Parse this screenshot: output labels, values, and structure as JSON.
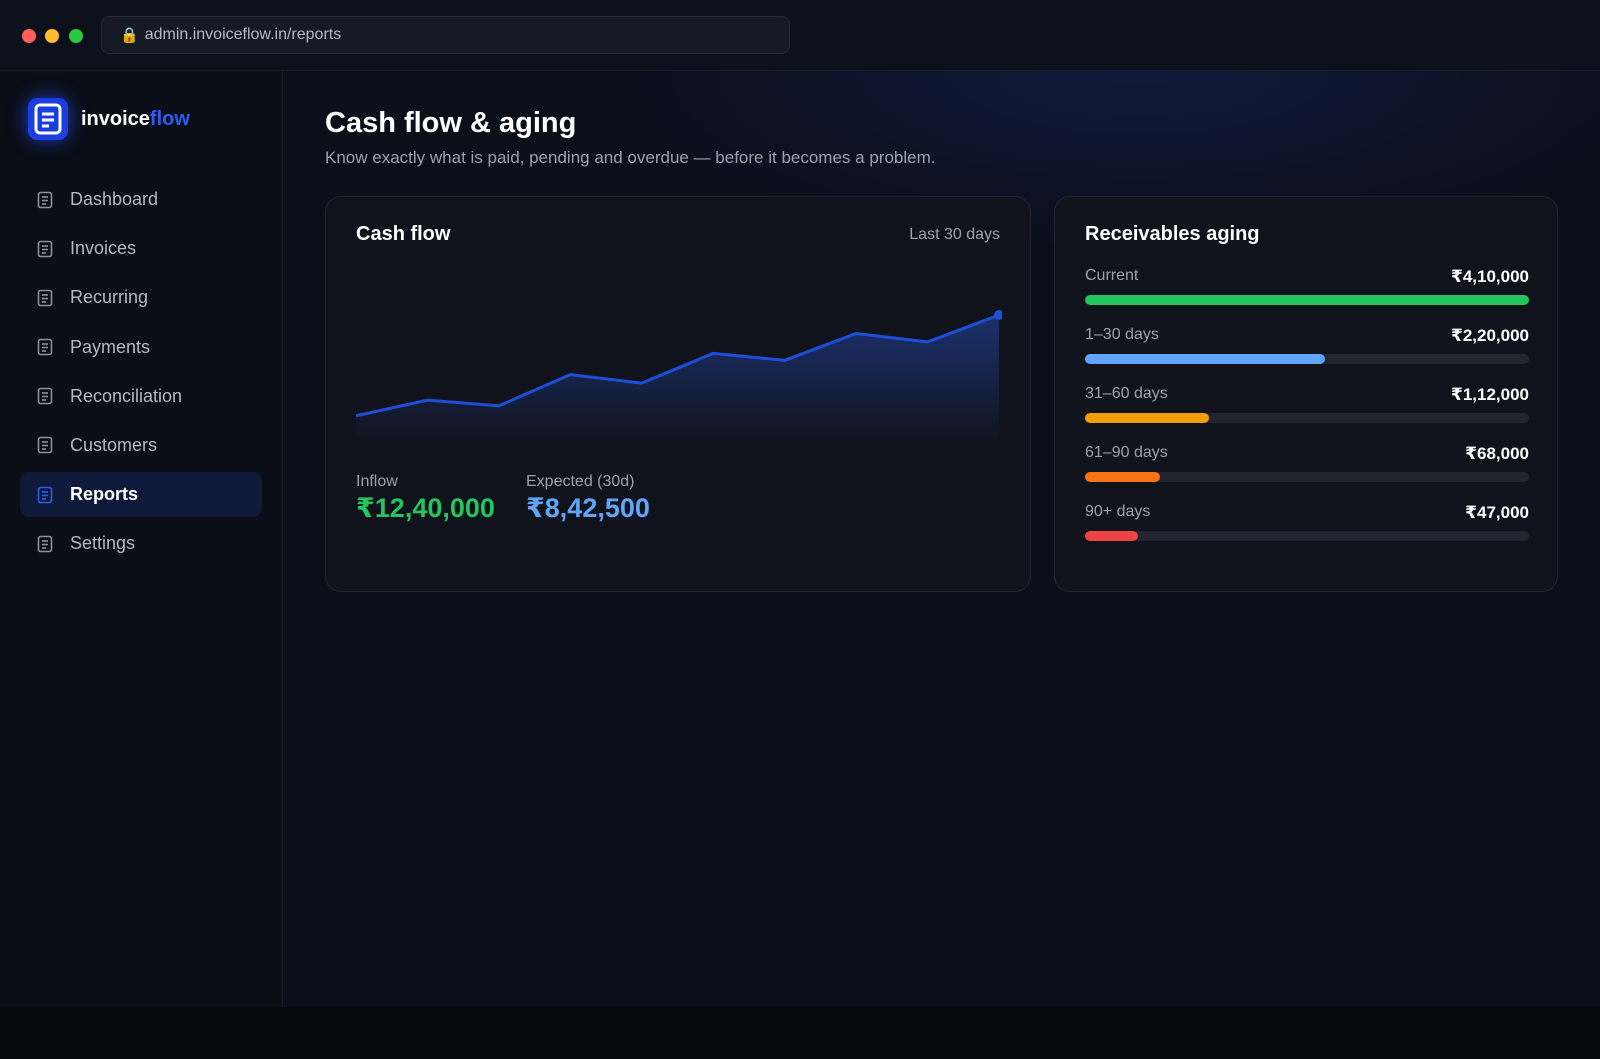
{
  "browser": {
    "url": "admin.invoiceflow.in/reports"
  },
  "brand": {
    "name_main": "invoice",
    "name_accent": "flow",
    "accent_color": "#2f5bf0"
  },
  "sidebar": {
    "items": [
      {
        "label": "Dashboard",
        "active": false
      },
      {
        "label": "Invoices",
        "active": false
      },
      {
        "label": "Recurring",
        "active": false
      },
      {
        "label": "Payments",
        "active": false
      },
      {
        "label": "Reconciliation",
        "active": false
      },
      {
        "label": "Customers",
        "active": false
      },
      {
        "label": "Reports",
        "active": true
      },
      {
        "label": "Settings",
        "active": false
      }
    ],
    "icon": "document-icon"
  },
  "page": {
    "title": "Cash flow & aging",
    "subtitle": "Know exactly what is paid, pending and overdue — before it becomes a problem."
  },
  "cashflow": {
    "title": "Cash flow",
    "range": "Last 30 days",
    "inflow_label": "Inflow",
    "inflow_value": "₹12,40,000",
    "expected_label": "Expected (30d)",
    "expected_value": "₹8,42,500"
  },
  "chart_data": {
    "type": "area",
    "title": "Cash flow",
    "x": [
      1,
      2,
      3,
      4,
      5,
      6,
      7,
      8,
      9,
      10
    ],
    "values": [
      10,
      21,
      17,
      39,
      33,
      54,
      49,
      68,
      62,
      81
    ],
    "ylim": [
      0,
      100
    ],
    "grid": false,
    "color": "#1d4ed8"
  },
  "aging": {
    "title": "Receivables aging",
    "rows": [
      {
        "label": "Current",
        "amount": "₹4,10,000",
        "fill": 1.0,
        "color": "#22c55e"
      },
      {
        "label": "1–30 days",
        "amount": "₹2,20,000",
        "fill": 0.54,
        "color": "#60a5fa"
      },
      {
        "label": "31–60 days",
        "amount": "₹1,12,000",
        "fill": 0.28,
        "color": "#f59e0b"
      },
      {
        "label": "61–90 days",
        "amount": "₹68,000",
        "fill": 0.17,
        "color": "#f97316"
      },
      {
        "label": "90+ days",
        "amount": "₹47,000",
        "fill": 0.12,
        "color": "#ef4444"
      }
    ]
  }
}
